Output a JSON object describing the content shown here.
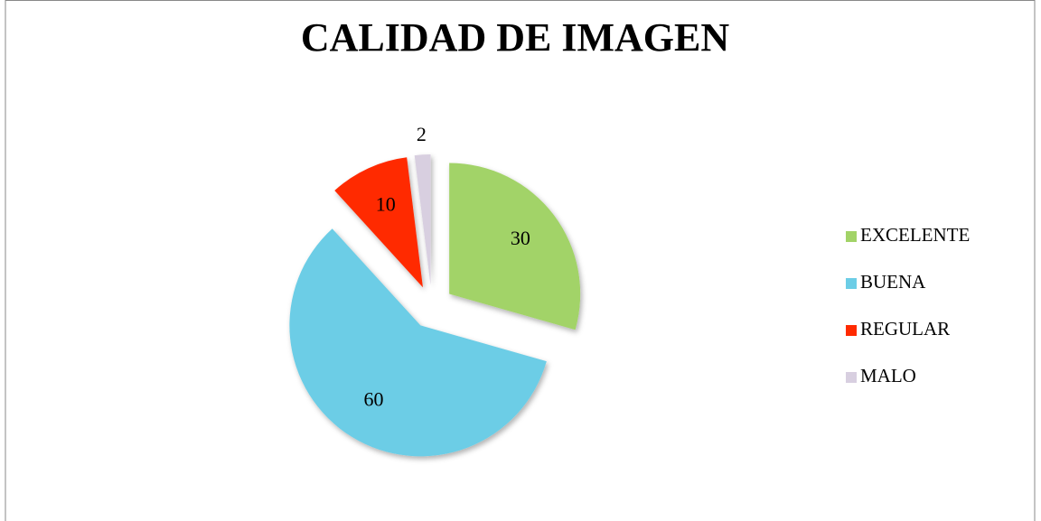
{
  "chart_data": {
    "type": "pie",
    "title": "CALIDAD DE IMAGEN",
    "categories": [
      "EXCELENTE",
      "BUENA",
      "REGULAR",
      "MALO"
    ],
    "values": [
      30,
      60,
      10,
      2
    ],
    "colors": [
      "#a2d367",
      "#6ccde6",
      "#ff2a00",
      "#d8cfe0"
    ],
    "legend": "right"
  }
}
